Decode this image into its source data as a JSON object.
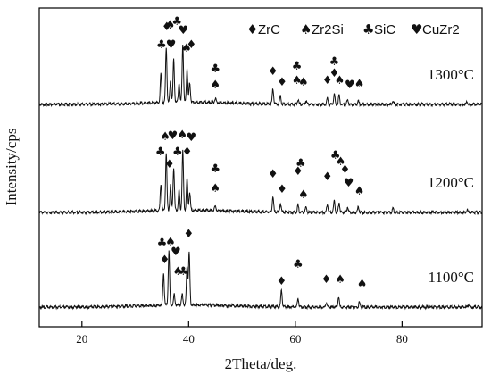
{
  "chart_data": {
    "type": "line",
    "xlabel": "2Theta/deg.",
    "ylabel": "Intensity/cps",
    "xlim": [
      12,
      95
    ],
    "x_ticks": [
      "20",
      "40",
      "60",
      "80"
    ],
    "x_tick_values": [
      20,
      40,
      60,
      80
    ],
    "grid": false,
    "legend_position": "top-right",
    "legend": [
      {
        "symbol": "diamond",
        "glyph": "♦",
        "label": "ZrC"
      },
      {
        "symbol": "spade",
        "glyph": "♠",
        "label": "Zr2Si"
      },
      {
        "symbol": "club",
        "glyph": "♣",
        "label": "SiC"
      },
      {
        "symbol": "heart",
        "glyph": "♥",
        "label": "CuZr2"
      }
    ],
    "series": [
      {
        "name": "1300°C",
        "baseline": 117,
        "peaks": [
          {
            "x": 34.8,
            "h": 32
          },
          {
            "x": 35.8,
            "h": 62
          },
          {
            "x": 36.6,
            "h": 25
          },
          {
            "x": 37.2,
            "h": 48
          },
          {
            "x": 38.2,
            "h": 22
          },
          {
            "x": 38.9,
            "h": 65
          },
          {
            "x": 39.7,
            "h": 38
          },
          {
            "x": 40.2,
            "h": 22
          },
          {
            "x": 45.0,
            "h": 5
          },
          {
            "x": 55.8,
            "h": 17
          },
          {
            "x": 57.2,
            "h": 9
          },
          {
            "x": 60.5,
            "h": 5
          },
          {
            "x": 62.0,
            "h": 4
          },
          {
            "x": 66.0,
            "h": 7
          },
          {
            "x": 67.3,
            "h": 12
          },
          {
            "x": 68.2,
            "h": 10
          },
          {
            "x": 69.8,
            "h": 5
          },
          {
            "x": 71.8,
            "h": 4
          },
          {
            "x": 78.3,
            "h": 4
          },
          {
            "x": 92.2,
            "h": 3
          }
        ],
        "markers": [
          {
            "x": 34.9,
            "glyph": "♣",
            "level": 48
          },
          {
            "x": 35.9,
            "glyph": "♦",
            "level": 28
          },
          {
            "x": 36.5,
            "glyph": "♠",
            "level": 26
          },
          {
            "x": 36.7,
            "glyph": "♥",
            "level": 48
          },
          {
            "x": 37.8,
            "glyph": "♣",
            "level": 22
          },
          {
            "x": 39.0,
            "glyph": "♥",
            "level": 32
          },
          {
            "x": 39.6,
            "glyph": "♠",
            "level": 52
          },
          {
            "x": 40.5,
            "glyph": "♦",
            "level": 48
          },
          {
            "x": 45.0,
            "glyph": "♣",
            "level": 75
          },
          {
            "x": 45.0,
            "glyph": "♠",
            "level": 93
          },
          {
            "x": 55.8,
            "glyph": "♦",
            "level": 78
          },
          {
            "x": 57.5,
            "glyph": "♦",
            "level": 90
          },
          {
            "x": 60.3,
            "glyph": "♣",
            "level": 72
          },
          {
            "x": 60.3,
            "glyph": "♠",
            "level": 88
          },
          {
            "x": 61.5,
            "glyph": "♠",
            "level": 90
          },
          {
            "x": 66.0,
            "glyph": "♦",
            "level": 88
          },
          {
            "x": 67.3,
            "glyph": "♣",
            "level": 67
          },
          {
            "x": 67.3,
            "glyph": "♦",
            "level": 80
          },
          {
            "x": 68.3,
            "glyph": "♠",
            "level": 88
          },
          {
            "x": 70.2,
            "glyph": "♥",
            "level": 93
          },
          {
            "x": 72.0,
            "glyph": "♠",
            "level": 92
          }
        ]
      },
      {
        "name": "1200°C",
        "baseline": 238,
        "peaks": [
          {
            "x": 34.8,
            "h": 30
          },
          {
            "x": 35.8,
            "h": 64
          },
          {
            "x": 36.6,
            "h": 28
          },
          {
            "x": 37.2,
            "h": 48
          },
          {
            "x": 38.2,
            "h": 22
          },
          {
            "x": 38.9,
            "h": 66
          },
          {
            "x": 39.7,
            "h": 36
          },
          {
            "x": 40.2,
            "h": 20
          },
          {
            "x": 45.0,
            "h": 5
          },
          {
            "x": 55.8,
            "h": 18
          },
          {
            "x": 57.2,
            "h": 10
          },
          {
            "x": 60.5,
            "h": 8
          },
          {
            "x": 62.0,
            "h": 6
          },
          {
            "x": 66.0,
            "h": 9
          },
          {
            "x": 67.3,
            "h": 13
          },
          {
            "x": 68.2,
            "h": 11
          },
          {
            "x": 69.8,
            "h": 6
          },
          {
            "x": 71.8,
            "h": 6
          },
          {
            "x": 78.3,
            "h": 4
          },
          {
            "x": 92.2,
            "h": 3
          }
        ],
        "markers": [
          {
            "x": 34.7,
            "glyph": "♣",
            "level": 168
          },
          {
            "x": 35.6,
            "glyph": "♠",
            "level": 151
          },
          {
            "x": 36.4,
            "glyph": "♦",
            "level": 182
          },
          {
            "x": 37.0,
            "glyph": "♥",
            "level": 150
          },
          {
            "x": 37.9,
            "glyph": "♣",
            "level": 168
          },
          {
            "x": 38.8,
            "glyph": "♠",
            "level": 149
          },
          {
            "x": 39.7,
            "glyph": "♦",
            "level": 168
          },
          {
            "x": 40.5,
            "glyph": "♥",
            "level": 152
          },
          {
            "x": 45.0,
            "glyph": "♣",
            "level": 187
          },
          {
            "x": 45.0,
            "glyph": "♠",
            "level": 209
          },
          {
            "x": 55.8,
            "glyph": "♦",
            "level": 193
          },
          {
            "x": 57.5,
            "glyph": "♦",
            "level": 210
          },
          {
            "x": 60.5,
            "glyph": "♦",
            "level": 190
          },
          {
            "x": 61.0,
            "glyph": "♣",
            "level": 181
          },
          {
            "x": 61.5,
            "glyph": "♠",
            "level": 216
          },
          {
            "x": 66.0,
            "glyph": "♦",
            "level": 196
          },
          {
            "x": 67.5,
            "glyph": "♣",
            "level": 172
          },
          {
            "x": 68.5,
            "glyph": "♠",
            "level": 179
          },
          {
            "x": 69.3,
            "glyph": "♦",
            "level": 188
          },
          {
            "x": 70.0,
            "glyph": "♥",
            "level": 203
          },
          {
            "x": 72.0,
            "glyph": "♠",
            "level": 212
          }
        ]
      },
      {
        "name": "1100°C",
        "baseline": 344,
        "peaks": [
          {
            "x": 35.3,
            "h": 36
          },
          {
            "x": 36.3,
            "h": 60
          },
          {
            "x": 37.3,
            "h": 12
          },
          {
            "x": 38.8,
            "h": 12
          },
          {
            "x": 39.7,
            "h": 44
          },
          {
            "x": 40.1,
            "h": 58
          },
          {
            "x": 57.4,
            "h": 19
          },
          {
            "x": 60.5,
            "h": 10
          },
          {
            "x": 65.8,
            "h": 5
          },
          {
            "x": 68.1,
            "h": 12
          },
          {
            "x": 72.0,
            "h": 5
          },
          {
            "x": 92.5,
            "h": 3
          }
        ],
        "markers": [
          {
            "x": 35.0,
            "glyph": "♣",
            "level": 270
          },
          {
            "x": 35.5,
            "glyph": "♦",
            "level": 289
          },
          {
            "x": 36.6,
            "glyph": "♠",
            "level": 269
          },
          {
            "x": 37.6,
            "glyph": "♥",
            "level": 280
          },
          {
            "x": 38.0,
            "glyph": "♠",
            "level": 302
          },
          {
            "x": 39.0,
            "glyph": "♣",
            "level": 302
          },
          {
            "x": 40.0,
            "glyph": "♦",
            "level": 260
          },
          {
            "x": 57.4,
            "glyph": "♦",
            "level": 313
          },
          {
            "x": 60.5,
            "glyph": "♣",
            "level": 294
          },
          {
            "x": 65.8,
            "glyph": "♦",
            "level": 311
          },
          {
            "x": 68.4,
            "glyph": "♠",
            "level": 311
          },
          {
            "x": 72.5,
            "glyph": "♠",
            "level": 316
          }
        ]
      }
    ]
  }
}
